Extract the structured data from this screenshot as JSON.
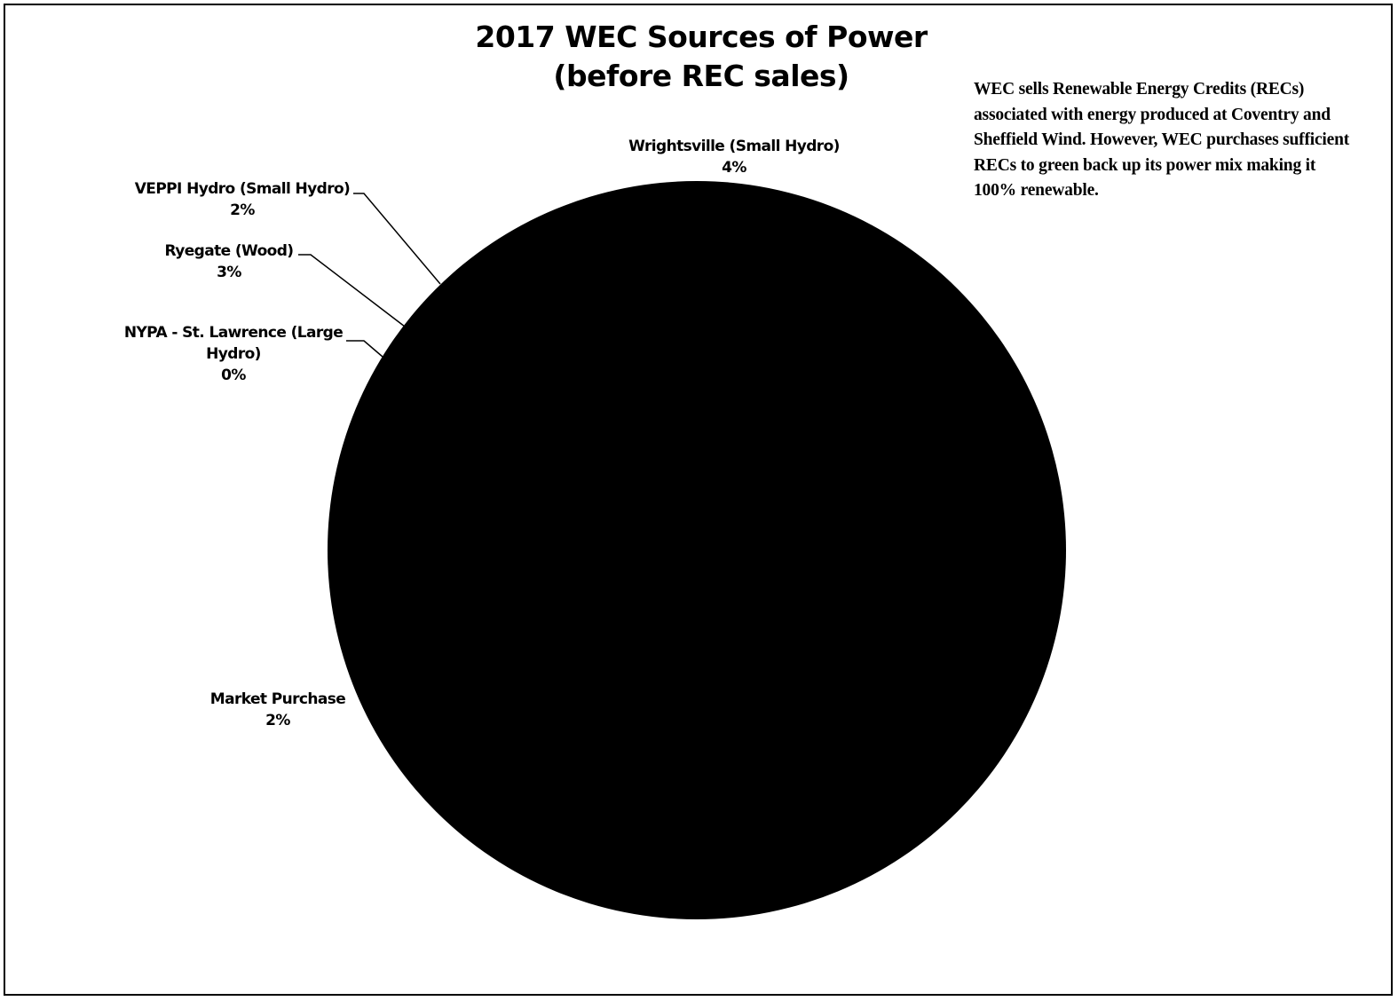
{
  "chart_data": {
    "type": "pie",
    "title": "2017 WEC Sources of Power",
    "subtitle": "(before REC sales)",
    "annotation": "WEC sells Renewable Energy Credits (RECs) associated with energy produced at Coventry and Sheffield Wind. However, WEC purchases sufficient RECs to green back up its power mix making it 100% renewable.",
    "slices": [
      {
        "label_lines": [
          "Wrightsville (Small Hydro)"
        ],
        "pct_label": "4%",
        "value": 4
      },
      {
        "label_lines": [
          "Market Purchase"
        ],
        "pct_label": "2%",
        "value": 2
      },
      {
        "label_lines": [
          "NYPA - St. Lawrence (Large",
          "Hydro)"
        ],
        "pct_label": "0%",
        "value": 0
      },
      {
        "label_lines": [
          "Ryegate (Wood)"
        ],
        "pct_label": "3%",
        "value": 3
      },
      {
        "label_lines": [
          "VEPPI Hydro (Small Hydro)"
        ],
        "pct_label": "2%",
        "value": 2
      }
    ],
    "fill_color": "#000000",
    "legend": "none"
  }
}
